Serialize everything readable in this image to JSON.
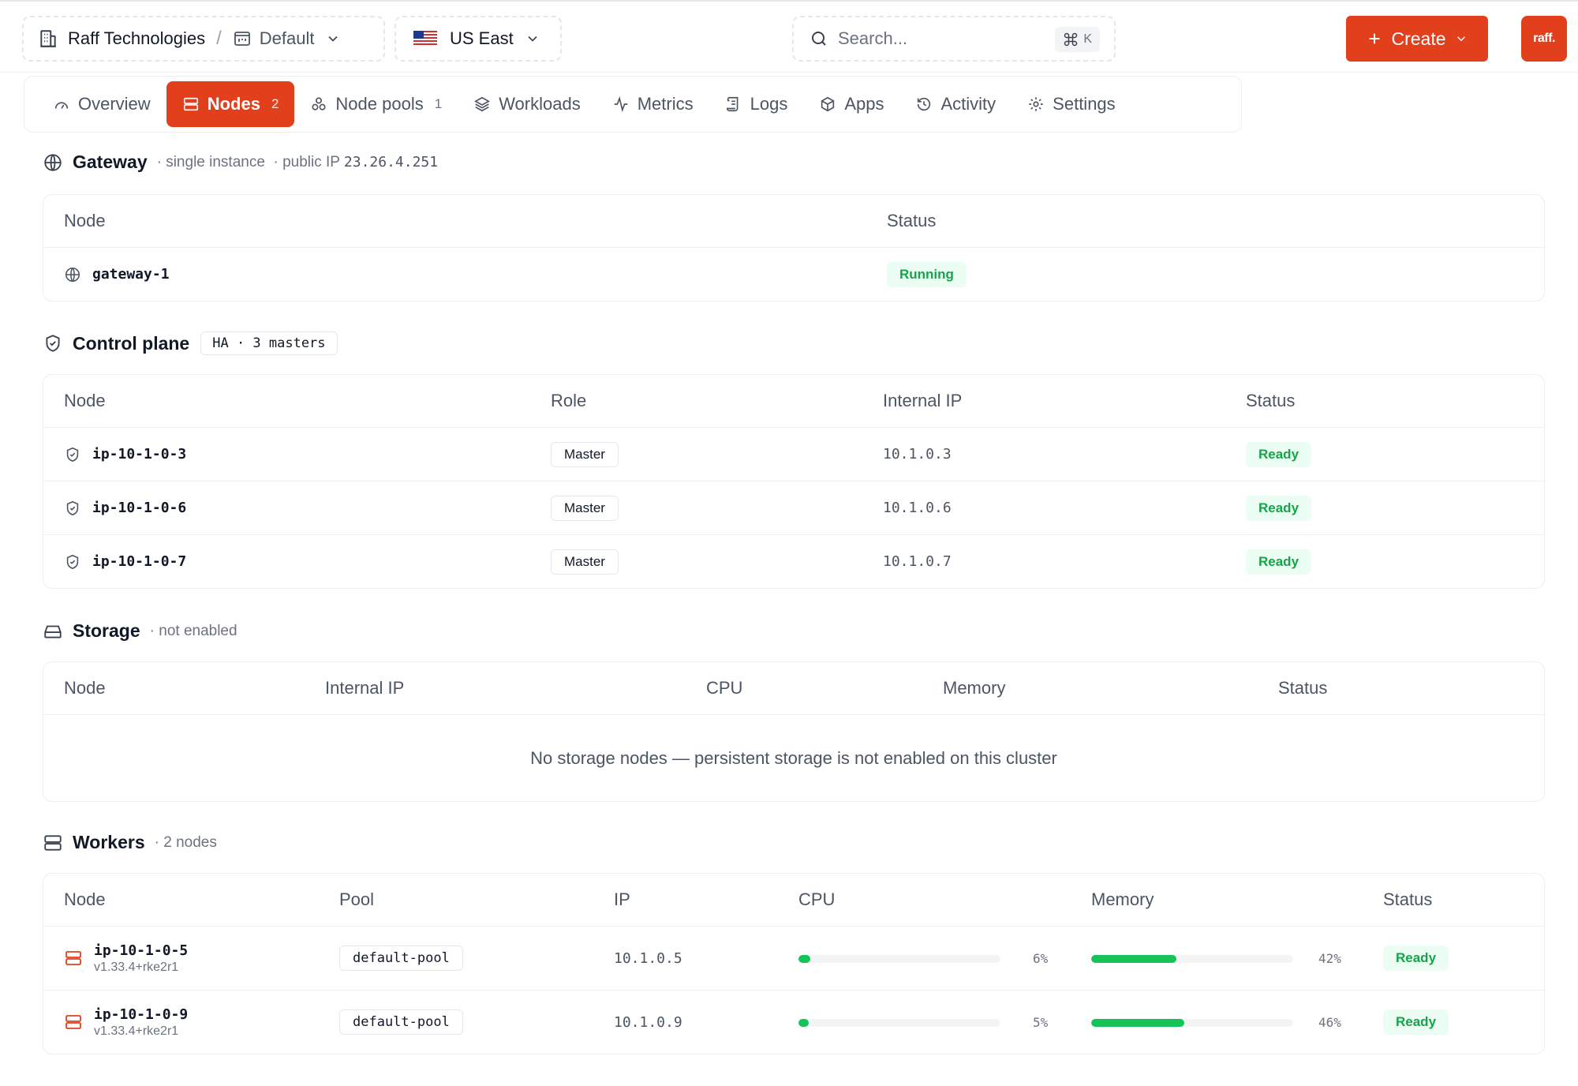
{
  "topbar": {
    "org": "Raff Technologies",
    "project": "Default",
    "region": "US East",
    "search_placeholder": "Search...",
    "search_shortcut": "K",
    "create_label": "Create",
    "avatar_text": "raff.",
    "brand_color": "#e2401c"
  },
  "tabs": [
    {
      "label": "Overview",
      "icon": "gauge-icon"
    },
    {
      "label": "Nodes",
      "count": "2",
      "icon": "server-icon",
      "active": true
    },
    {
      "label": "Node pools",
      "count": "1",
      "icon": "pools-icon"
    },
    {
      "label": "Workloads",
      "icon": "layers-icon"
    },
    {
      "label": "Metrics",
      "icon": "activity-icon"
    },
    {
      "label": "Logs",
      "icon": "scroll-icon"
    },
    {
      "label": "Apps",
      "icon": "package-icon"
    },
    {
      "label": "Activity",
      "icon": "history-icon"
    },
    {
      "label": "Settings",
      "icon": "gear-icon"
    }
  ],
  "gateway": {
    "title": "Gateway",
    "meta1": "· single instance",
    "meta2_prefix": "· public IP",
    "public_ip": "23.26.4.251",
    "columns": {
      "node": "Node",
      "status": "Status"
    },
    "rows": [
      {
        "node": "gateway-1",
        "status": "Running"
      }
    ]
  },
  "control_plane": {
    "title": "Control plane",
    "chip": "HA · 3 masters",
    "columns": {
      "node": "Node",
      "role": "Role",
      "ip": "Internal IP",
      "status": "Status"
    },
    "rows": [
      {
        "node": "ip-10-1-0-3",
        "role": "Master",
        "ip": "10.1.0.3",
        "status": "Ready"
      },
      {
        "node": "ip-10-1-0-6",
        "role": "Master",
        "ip": "10.1.0.6",
        "status": "Ready"
      },
      {
        "node": "ip-10-1-0-7",
        "role": "Master",
        "ip": "10.1.0.7",
        "status": "Ready"
      }
    ]
  },
  "storage": {
    "title": "Storage",
    "meta": "· not enabled",
    "columns": {
      "node": "Node",
      "ip": "Internal IP",
      "cpu": "CPU",
      "memory": "Memory",
      "status": "Status"
    },
    "empty": "No storage nodes — persistent storage is not enabled on this cluster"
  },
  "workers": {
    "title": "Workers",
    "meta": "· 2 nodes",
    "columns": {
      "node": "Node",
      "pool": "Pool",
      "ip": "IP",
      "cpu": "CPU",
      "memory": "Memory",
      "status": "Status"
    },
    "rows": [
      {
        "node": "ip-10-1-0-5",
        "version": "v1.33.4+rke2r1",
        "pool": "default-pool",
        "ip": "10.1.0.5",
        "cpu": "6%",
        "cpu_value": 6,
        "memory": "42%",
        "memory_value": 42,
        "status": "Ready"
      },
      {
        "node": "ip-10-1-0-9",
        "version": "v1.33.4+rke2r1",
        "pool": "default-pool",
        "ip": "10.1.0.9",
        "cpu": "5%",
        "cpu_value": 5,
        "memory": "46%",
        "memory_value": 46,
        "status": "Ready"
      }
    ]
  }
}
